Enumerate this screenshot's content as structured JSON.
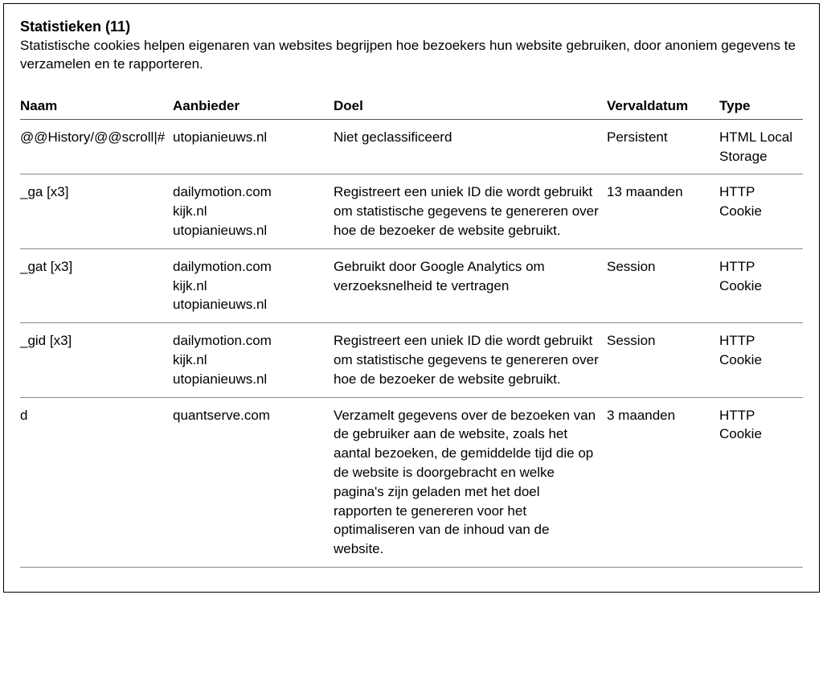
{
  "section": {
    "title": "Statistieken (11)",
    "description": "Statistische cookies helpen eigenaren van websites begrijpen hoe bezoekers hun website gebruiken, door anoniem gegevens te verzamelen en te rapporteren."
  },
  "columns": {
    "name": "Naam",
    "provider": "Aanbieder",
    "purpose": "Doel",
    "expiry": "Vervaldatum",
    "type": "Type"
  },
  "rows": [
    {
      "name": "@@History/@@scroll|#",
      "providers": [
        "utopianieuws.nl"
      ],
      "purpose": "Niet geclassificeerd",
      "expiry": "Persistent",
      "type": "HTML Local Storage"
    },
    {
      "name": "_ga [x3]",
      "providers": [
        "dailymotion.com",
        "kijk.nl",
        "utopianieuws.nl"
      ],
      "purpose": "Registreert een uniek ID die wordt gebruikt om statistische gegevens te genereren over hoe de bezoeker de website gebruikt.",
      "expiry": "13 maanden",
      "type": "HTTP Cookie"
    },
    {
      "name": "_gat [x3]",
      "providers": [
        "dailymotion.com",
        "kijk.nl",
        "utopianieuws.nl"
      ],
      "purpose": "Gebruikt door Google Analytics om verzoeksnelheid te vertragen",
      "expiry": "Session",
      "type": "HTTP Cookie"
    },
    {
      "name": "_gid [x3]",
      "providers": [
        "dailymotion.com",
        "kijk.nl",
        "utopianieuws.nl"
      ],
      "purpose": "Registreert een uniek ID die wordt gebruikt om statistische gegevens te genereren over hoe de bezoeker de website gebruikt.",
      "expiry": "Session",
      "type": "HTTP Cookie"
    },
    {
      "name": "d",
      "providers": [
        "quantserve.com"
      ],
      "purpose": "Verzamelt gegevens over de bezoeken van de gebruiker aan de website, zoals het aantal bezoeken, de gemiddelde tijd die op de website is doorgebracht en welke pagina's zijn geladen met het doel rapporten te genereren voor het optimaliseren van de inhoud van de website.",
      "expiry": "3 maanden",
      "type": "HTTP Cookie"
    }
  ]
}
